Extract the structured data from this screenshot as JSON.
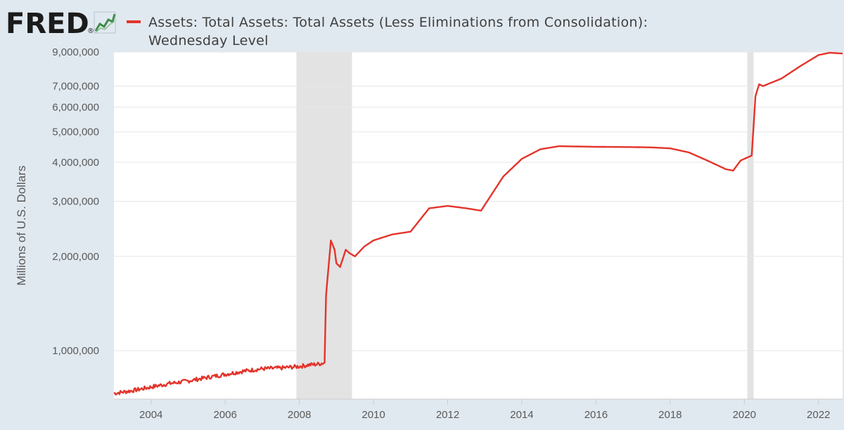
{
  "header": {
    "logo_text": "FRED",
    "logo_registered": "®",
    "logo_icon": "line-chart-icon",
    "title_line1": "Assets: Total Assets: Total Assets (Less Eliminations from Consolidation):",
    "title_line2": "Wednesday Level"
  },
  "colors": {
    "series": "#e3342b",
    "background": "#e1e9f0",
    "plot": "#ffffff",
    "recession": "#e3e3e3",
    "grid": "#e6e6e6",
    "logo": "#1b1b1b",
    "logo_icon": "#3e8e4b"
  },
  "chart_data": {
    "type": "line",
    "title": "Assets: Total Assets: Total Assets (Less Eliminations from Consolidation): Wednesday Level",
    "xlabel": "",
    "ylabel": "Millions of U.S. Dollars",
    "y_scale": "log",
    "xlim": [
      2003.0,
      2022.65
    ],
    "ylim": [
      700000,
      9000000
    ],
    "x_ticks": [
      2004,
      2006,
      2008,
      2010,
      2012,
      2014,
      2016,
      2018,
      2020,
      2022
    ],
    "x_tick_labels": [
      "2004",
      "2006",
      "2008",
      "2010",
      "2012",
      "2014",
      "2016",
      "2018",
      "2020",
      "2022"
    ],
    "y_ticks": [
      1000000,
      2000000,
      3000000,
      4000000,
      5000000,
      6000000,
      7000000,
      9000000
    ],
    "y_tick_labels": [
      "1,000,000",
      "2,000,000",
      "3,000,000",
      "4,000,000",
      "5,000,000",
      "6,000,000",
      "7,000,000",
      "9,000,000"
    ],
    "recessions": [
      [
        2007.92,
        2009.42
      ],
      [
        2020.08,
        2020.25
      ]
    ],
    "grid": true,
    "legend": "top-left",
    "series": [
      {
        "name": "Assets: Total Assets: Total Assets (Less Eliminations from Consolidation): Wednesday Level",
        "x": [
          2003.0,
          2003.5,
          2004.0,
          2004.5,
          2005.0,
          2005.5,
          2006.0,
          2006.5,
          2007.0,
          2007.5,
          2008.0,
          2008.25,
          2008.5,
          2008.68,
          2008.72,
          2008.85,
          2008.95,
          2009.0,
          2009.1,
          2009.25,
          2009.35,
          2009.5,
          2009.75,
          2010.0,
          2010.5,
          2011.0,
          2011.5,
          2012.0,
          2012.5,
          2012.9,
          2013.5,
          2014.0,
          2014.5,
          2015.0,
          2016.0,
          2017.0,
          2017.5,
          2018.0,
          2018.5,
          2019.0,
          2019.5,
          2019.7,
          2019.9,
          2020.1,
          2020.2,
          2020.3,
          2020.4,
          2020.5,
          2021.0,
          2021.5,
          2022.0,
          2022.3,
          2022.65
        ],
        "y": [
          730000,
          745000,
          765000,
          785000,
          800000,
          820000,
          840000,
          860000,
          875000,
          880000,
          890000,
          900000,
          905000,
          915000,
          1500000,
          2250000,
          2100000,
          1900000,
          1850000,
          2100000,
          2050000,
          2000000,
          2150000,
          2250000,
          2350000,
          2400000,
          2850000,
          2900000,
          2850000,
          2800000,
          3600000,
          4100000,
          4400000,
          4500000,
          4480000,
          4470000,
          4460000,
          4430000,
          4300000,
          4050000,
          3800000,
          3760000,
          4050000,
          4150000,
          4200000,
          6500000,
          7100000,
          7000000,
          7400000,
          8100000,
          8800000,
          8950000,
          8900000
        ]
      }
    ]
  }
}
